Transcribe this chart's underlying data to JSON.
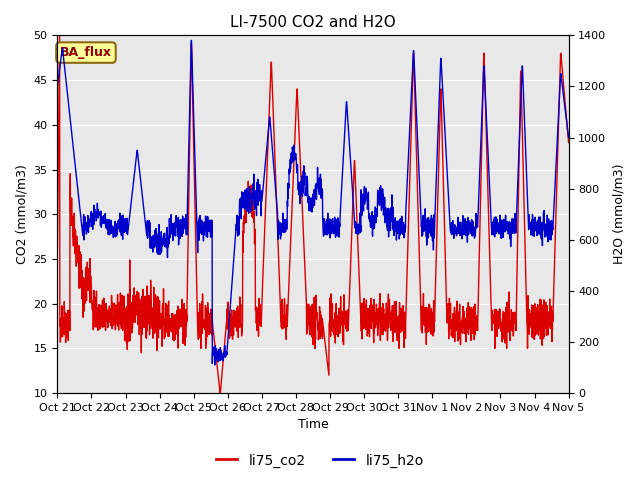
{
  "title": "LI-7500 CO2 and H2O",
  "xlabel": "Time",
  "ylabel_left": "CO2 (mmol/m3)",
  "ylabel_right": "H2O (mmol/m3)",
  "co2_color": "#DD0000",
  "h2o_color": "#0000CC",
  "ylim_left": [
    10,
    50
  ],
  "ylim_right": [
    0,
    1400
  ],
  "yticks_left": [
    10,
    15,
    20,
    25,
    30,
    35,
    40,
    45,
    50
  ],
  "yticks_right": [
    0,
    200,
    400,
    600,
    800,
    1000,
    1200,
    1400
  ],
  "xtick_labels": [
    "Oct 21",
    "Oct 22",
    "Oct 23",
    "Oct 24",
    "Oct 25",
    "Oct 26",
    "Oct 27",
    "Oct 28",
    "Oct 29",
    "Oct 30",
    "Oct 31",
    "Nov 1",
    "Nov 2",
    "Nov 3",
    "Nov 4",
    "Nov 5"
  ],
  "legend_labels": [
    "li75_co2",
    "li75_h2o"
  ],
  "annotation_text": "BA_flux",
  "bg_color": "#E8E8E8",
  "fig_bg_color": "#FFFFFF",
  "linewidth": 1.0,
  "title_fontsize": 11,
  "axis_label_fontsize": 9,
  "tick_fontsize": 8
}
